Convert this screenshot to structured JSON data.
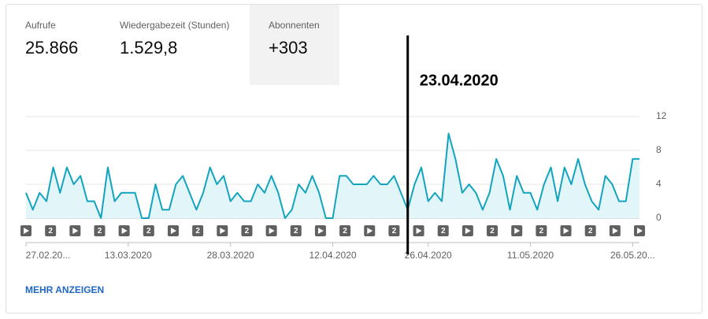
{
  "metrics": [
    {
      "label": "Aufrufe",
      "value": "25.866"
    },
    {
      "label": "Wiedergabezeit (Stunden)",
      "value": "1.529,8"
    },
    {
      "label": "Abonnenten",
      "value": "+303",
      "selected": true
    }
  ],
  "chart_data": {
    "type": "line",
    "color": "#12a4bf",
    "area_color": "#e2f5f8",
    "categories": [
      "27.02.20...",
      null,
      null,
      null,
      null,
      null,
      null,
      null,
      null,
      null,
      null,
      null,
      null,
      null,
      null,
      "13.03.2020",
      null,
      null,
      null,
      null,
      null,
      null,
      null,
      null,
      null,
      null,
      null,
      null,
      null,
      null,
      "28.03.2020",
      null,
      null,
      null,
      null,
      null,
      null,
      null,
      null,
      null,
      null,
      null,
      null,
      null,
      null,
      "12.04.2020",
      null,
      null,
      null,
      null,
      null,
      null,
      null,
      null,
      null,
      null,
      null,
      null,
      null,
      "26.04.2020",
      null,
      null,
      null,
      null,
      null,
      null,
      null,
      null,
      null,
      null,
      null,
      null,
      null,
      null,
      "11.05.2020",
      null,
      null,
      null,
      null,
      null,
      null,
      null,
      null,
      null,
      null,
      null,
      null,
      null,
      null,
      "26.05.20...",
      null
    ],
    "values": [
      3,
      1,
      3,
      2,
      6,
      3,
      6,
      4,
      5,
      2,
      2,
      0,
      6,
      2,
      3,
      3,
      3,
      0,
      0,
      4,
      1,
      1,
      4,
      5,
      3,
      1,
      3,
      6,
      4,
      5,
      2,
      3,
      2,
      2,
      4,
      3,
      5,
      3,
      0,
      1,
      4,
      3,
      5,
      3,
      0,
      0,
      5,
      5,
      4,
      4,
      4,
      5,
      4,
      4,
      5,
      3,
      1,
      4,
      6,
      2,
      3,
      2,
      10,
      7,
      3,
      4,
      3,
      1,
      3,
      7,
      5,
      1,
      5,
      3,
      3,
      1,
      4,
      6,
      2,
      6,
      4,
      7,
      4,
      2,
      1,
      5,
      4,
      2,
      2,
      7,
      7
    ],
    "ylim": [
      0,
      12
    ],
    "yticks": [
      0,
      4,
      8,
      12
    ],
    "grid": true,
    "markers": [
      {
        "kind": "upload"
      },
      {
        "kind": "group",
        "label": "2"
      },
      {
        "kind": "upload"
      },
      {
        "kind": "group",
        "label": "2"
      },
      {
        "kind": "upload"
      },
      {
        "kind": "group",
        "label": "2"
      },
      {
        "kind": "upload"
      },
      {
        "kind": "group",
        "label": "2"
      },
      {
        "kind": "upload"
      },
      {
        "kind": "group",
        "label": "2"
      },
      {
        "kind": "upload"
      },
      {
        "kind": "group",
        "label": "2"
      },
      {
        "kind": "upload"
      },
      {
        "kind": "group",
        "label": "2"
      },
      {
        "kind": "upload"
      },
      {
        "kind": "group",
        "label": "2"
      },
      {
        "kind": "upload"
      },
      {
        "kind": "group",
        "label": "2"
      },
      {
        "kind": "upload"
      },
      {
        "kind": "group",
        "label": "2"
      },
      {
        "kind": "upload"
      },
      {
        "kind": "group",
        "label": "2"
      },
      {
        "kind": "upload"
      },
      {
        "kind": "group",
        "label": "2"
      },
      {
        "kind": "upload"
      },
      {
        "kind": "upload"
      }
    ],
    "annotation": {
      "text": "23.04.2020",
      "at": 56
    }
  },
  "link": "MEHR ANZEIGEN"
}
